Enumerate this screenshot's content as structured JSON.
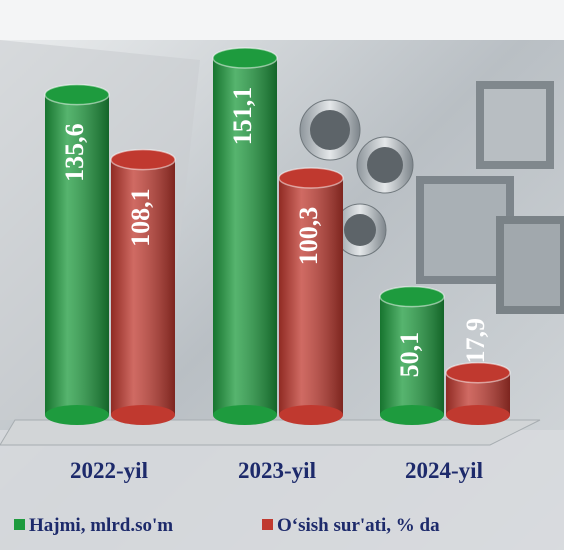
{
  "chart_data": {
    "type": "bar",
    "categories": [
      "2022-yil",
      "2023-yil",
      "2024-yil"
    ],
    "series": [
      {
        "name": "Hajmi, mlrd.so'm",
        "color": "#1e9b3e",
        "values": [
          135.6,
          151.1,
          50.1
        ],
        "value_labels": [
          "135,6",
          "151,1",
          "50,1"
        ]
      },
      {
        "name": "O‘sish sur'ati, % da",
        "color": "#c0392f",
        "values": [
          108.1,
          100.3,
          17.9
        ],
        "value_labels": [
          "108,1",
          "100,3",
          "17,9"
        ]
      }
    ]
  }
}
